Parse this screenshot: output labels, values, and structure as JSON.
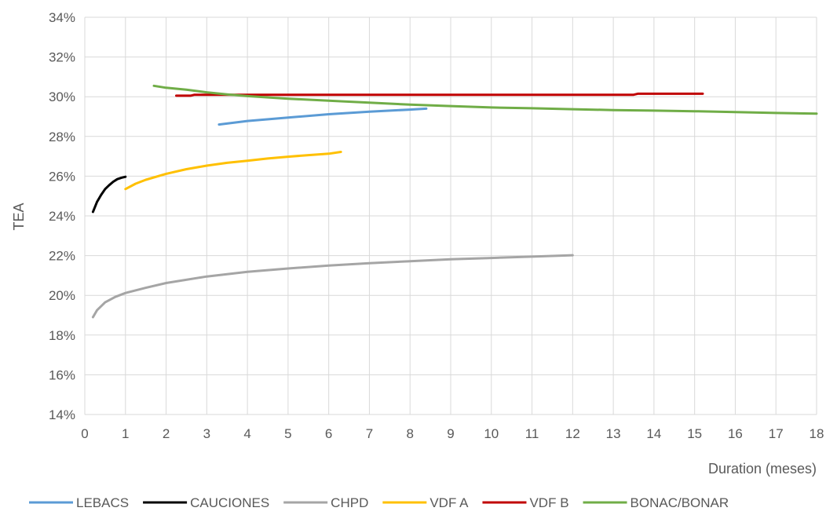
{
  "chart_data": {
    "type": "line",
    "title": "",
    "xlabel": "Duration (meses)",
    "ylabel": "TEA",
    "xlim": [
      0,
      18
    ],
    "ylim": [
      0.14,
      0.34
    ],
    "x_ticks": [
      "0",
      "1",
      "2",
      "3",
      "4",
      "5",
      "6",
      "7",
      "8",
      "9",
      "10",
      "11",
      "12",
      "13",
      "14",
      "15",
      "16",
      "17",
      "18"
    ],
    "y_ticks": [
      "14%",
      "16%",
      "18%",
      "20%",
      "22%",
      "24%",
      "26%",
      "28%",
      "30%",
      "32%",
      "34%"
    ],
    "grid": true,
    "legend_position": "bottom",
    "series": [
      {
        "name": "LEBACS",
        "color": "#5b9bd5",
        "points": [
          [
            3.3,
            0.286
          ],
          [
            4.0,
            0.2878
          ],
          [
            5.0,
            0.2895
          ],
          [
            6.0,
            0.2912
          ],
          [
            7.0,
            0.2925
          ],
          [
            8.0,
            0.2935
          ],
          [
            8.4,
            0.294
          ]
        ]
      },
      {
        "name": "CAUCIONES",
        "color": "#000000",
        "points": [
          [
            0.2,
            0.242
          ],
          [
            0.3,
            0.247
          ],
          [
            0.4,
            0.2505
          ],
          [
            0.5,
            0.2535
          ],
          [
            0.6,
            0.2555
          ],
          [
            0.7,
            0.2572
          ],
          [
            0.8,
            0.2585
          ],
          [
            0.9,
            0.2592
          ],
          [
            1.0,
            0.2597
          ]
        ]
      },
      {
        "name": "CHPD",
        "color": "#a5a5a5",
        "points": [
          [
            0.2,
            0.189
          ],
          [
            0.3,
            0.1925
          ],
          [
            0.5,
            0.1965
          ],
          [
            0.75,
            0.1992
          ],
          [
            1.0,
            0.2012
          ],
          [
            1.5,
            0.2038
          ],
          [
            2.0,
            0.2062
          ],
          [
            3.0,
            0.2095
          ],
          [
            4.0,
            0.2118
          ],
          [
            5.0,
            0.2135
          ],
          [
            6.0,
            0.215
          ],
          [
            7.0,
            0.2162
          ],
          [
            8.0,
            0.2172
          ],
          [
            9.0,
            0.2182
          ],
          [
            10.0,
            0.2188
          ],
          [
            11.0,
            0.2195
          ],
          [
            12.0,
            0.2202
          ]
        ]
      },
      {
        "name": "VDF A",
        "color": "#ffc000",
        "points": [
          [
            1.0,
            0.2535
          ],
          [
            1.25,
            0.2562
          ],
          [
            1.5,
            0.2582
          ],
          [
            2.0,
            0.2612
          ],
          [
            2.5,
            0.2635
          ],
          [
            3.0,
            0.2653
          ],
          [
            3.5,
            0.2667
          ],
          [
            4.0,
            0.2678
          ],
          [
            4.5,
            0.2689
          ],
          [
            5.0,
            0.2698
          ],
          [
            5.5,
            0.2706
          ],
          [
            6.0,
            0.2713
          ],
          [
            6.3,
            0.2722
          ]
        ]
      },
      {
        "name": "VDF B",
        "color": "#c00000",
        "points": [
          [
            2.25,
            0.3005
          ],
          [
            2.6,
            0.3005
          ],
          [
            2.7,
            0.301
          ],
          [
            13.5,
            0.301
          ],
          [
            13.6,
            0.3015
          ],
          [
            15.2,
            0.3015
          ]
        ]
      },
      {
        "name": "BONAC/BONAR",
        "color": "#70ad47",
        "points": [
          [
            1.7,
            0.3055
          ],
          [
            2.0,
            0.3045
          ],
          [
            2.5,
            0.3035
          ],
          [
            3.0,
            0.3022
          ],
          [
            3.5,
            0.3012
          ],
          [
            4.0,
            0.3003
          ],
          [
            5.0,
            0.299
          ],
          [
            6.0,
            0.298
          ],
          [
            7.0,
            0.297
          ],
          [
            8.0,
            0.296
          ],
          [
            9.0,
            0.2953
          ],
          [
            10.0,
            0.2946
          ],
          [
            11.0,
            0.2942
          ],
          [
            12.0,
            0.2937
          ],
          [
            13.0,
            0.2933
          ],
          [
            14.0,
            0.293
          ],
          [
            15.0,
            0.2927
          ],
          [
            16.0,
            0.2923
          ],
          [
            17.0,
            0.2918
          ],
          [
            18.0,
            0.2915
          ]
        ]
      }
    ]
  }
}
